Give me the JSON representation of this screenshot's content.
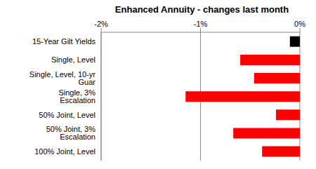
{
  "chart_data": {
    "type": "bar",
    "title": "Enhanced Annuity - changes last month",
    "orientation": "horizontal",
    "categories": [
      "15-Year Gilt Yields",
      "Single, Level",
      "Single, Level, 10-yr Guar",
      "Single, 3% Escalation",
      "50% Joint, Level",
      "50% Joint, 3% Escalation",
      "100% Joint, Level"
    ],
    "values": [
      -0.1,
      -0.6,
      -0.46,
      -1.15,
      -0.24,
      -0.67,
      -0.38
    ],
    "colors": [
      "#000000",
      "#ff0000",
      "#ff0000",
      "#ff0000",
      "#ff0000",
      "#ff0000",
      "#ff0000"
    ],
    "xlim": [
      -2,
      0
    ],
    "xticks": [
      {
        "value": -2,
        "label": "-2%"
      },
      {
        "value": -1,
        "label": "-1%"
      },
      {
        "value": 0,
        "label": "0%"
      }
    ],
    "grid": true,
    "data_labels": false
  }
}
